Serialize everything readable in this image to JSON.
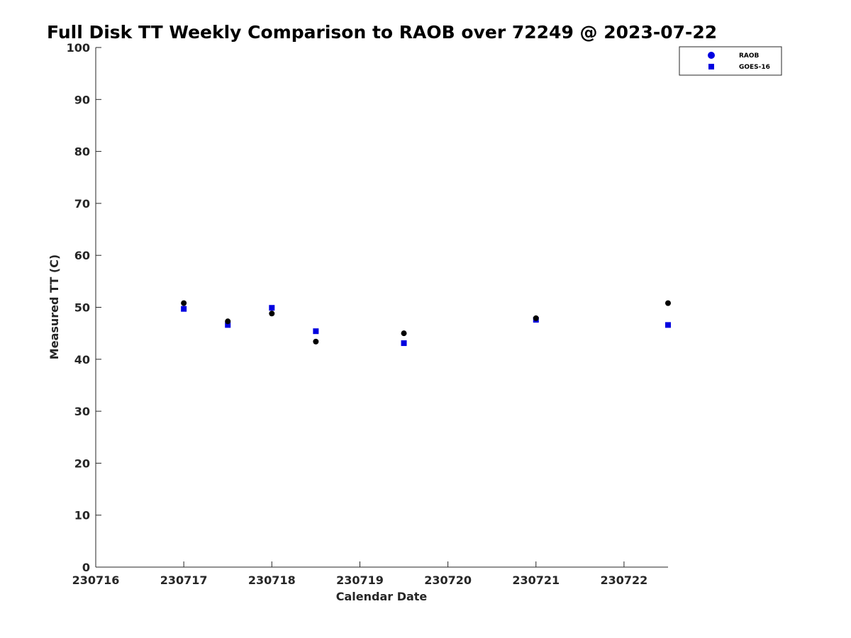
{
  "chart_data": {
    "type": "scatter",
    "title": "Full Disk TT Weekly Comparison to RAOB over 72249 @ 2023-07-22",
    "xlabel": "Calendar Date",
    "ylabel": "Measured TT (C)",
    "xlim": [
      230716,
      230722.5
    ],
    "ylim": [
      0,
      100
    ],
    "xticks": [
      230716,
      230717,
      230718,
      230719,
      230720,
      230721,
      230722
    ],
    "xtick_labels": [
      "230716",
      "230717",
      "230718",
      "230719",
      "230720",
      "230721",
      "230722"
    ],
    "yticks": [
      0,
      10,
      20,
      30,
      40,
      50,
      60,
      70,
      80,
      90,
      100
    ],
    "ytick_labels": [
      "0",
      "10",
      "20",
      "30",
      "40",
      "50",
      "60",
      "70",
      "80",
      "90",
      "100"
    ],
    "grid": false,
    "legend_position": "top-right",
    "series": [
      {
        "name": "RAOB",
        "marker": "circle",
        "legend_color": "#0000e0",
        "color": "#000000",
        "x": [
          230717,
          230717.5,
          230718,
          230718.5,
          230719.5,
          230721,
          230722.5
        ],
        "y": [
          50.8,
          47.3,
          48.8,
          43.4,
          45.0,
          47.9,
          50.8
        ]
      },
      {
        "name": "GOES-16",
        "marker": "square",
        "color": "#0000e0",
        "x": [
          230717,
          230717.5,
          230718,
          230718.5,
          230719.5,
          230721,
          230722.5
        ],
        "y": [
          49.7,
          46.6,
          49.9,
          45.4,
          43.1,
          47.6,
          46.6
        ]
      }
    ]
  }
}
